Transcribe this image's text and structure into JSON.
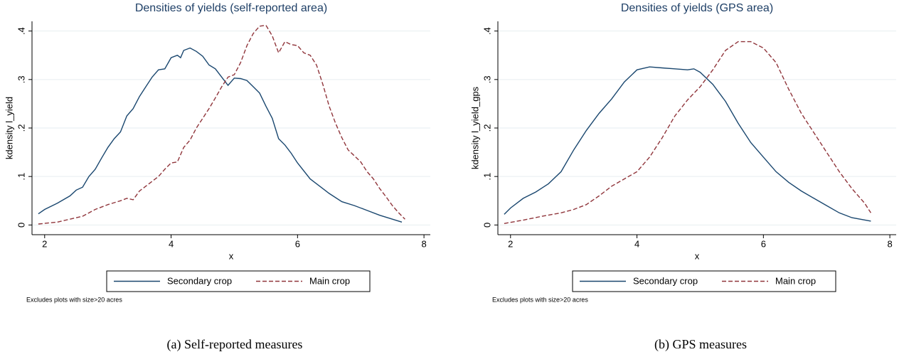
{
  "chart_data": [
    {
      "type": "line",
      "title": "Densities of yields (self-reported area)",
      "x_label": "x",
      "y_label": "kdensity l_yield",
      "note": "Excludes plots with size>20 acres",
      "caption": "(a) Self-reported measures",
      "xlim": [
        1.8,
        8.1
      ],
      "ylim": [
        -0.02,
        0.42
      ],
      "xticks": [
        2,
        4,
        6,
        8
      ],
      "yticks": [
        0,
        {
          "value": 0.1,
          "label": ".1"
        },
        {
          "value": 0.2,
          "label": ".2"
        },
        {
          "value": 0.3,
          "label": ".3"
        },
        {
          "value": 0.4,
          "label": ".4"
        }
      ],
      "grid": true,
      "series": [
        {
          "name": "Secondary crop",
          "color": "#1a476f",
          "dashed": false,
          "x": [
            1.9,
            2.0,
            2.2,
            2.4,
            2.5,
            2.6,
            2.7,
            2.8,
            2.9,
            3.0,
            3.1,
            3.2,
            3.3,
            3.4,
            3.5,
            3.6,
            3.7,
            3.8,
            3.9,
            4.0,
            4.1,
            4.15,
            4.2,
            4.3,
            4.4,
            4.5,
            4.6,
            4.7,
            4.8,
            4.9,
            5.0,
            5.1,
            5.2,
            5.3,
            5.4,
            5.5,
            5.6,
            5.7,
            5.8,
            5.9,
            6.0,
            6.2,
            6.4,
            6.5,
            6.7,
            6.9,
            7.1,
            7.3,
            7.5,
            7.65
          ],
          "values": [
            0.023,
            0.032,
            0.045,
            0.06,
            0.072,
            0.078,
            0.1,
            0.115,
            0.138,
            0.16,
            0.178,
            0.192,
            0.225,
            0.24,
            0.265,
            0.285,
            0.305,
            0.32,
            0.322,
            0.345,
            0.35,
            0.345,
            0.36,
            0.365,
            0.358,
            0.348,
            0.33,
            0.322,
            0.305,
            0.288,
            0.303,
            0.302,
            0.298,
            0.285,
            0.272,
            0.245,
            0.22,
            0.178,
            0.165,
            0.148,
            0.128,
            0.095,
            0.075,
            0.065,
            0.048,
            0.04,
            0.03,
            0.02,
            0.012,
            0.006
          ]
        },
        {
          "name": "Main crop",
          "color": "#90353b",
          "dashed": true,
          "x": [
            1.9,
            2.2,
            2.4,
            2.6,
            2.8,
            3.0,
            3.2,
            3.3,
            3.4,
            3.5,
            3.6,
            3.7,
            3.8,
            3.9,
            4.0,
            4.1,
            4.2,
            4.3,
            4.4,
            4.5,
            4.6,
            4.7,
            4.8,
            4.9,
            5.0,
            5.1,
            5.2,
            5.3,
            5.4,
            5.5,
            5.6,
            5.7,
            5.8,
            5.9,
            6.0,
            6.1,
            6.2,
            6.3,
            6.4,
            6.5,
            6.6,
            6.7,
            6.8,
            7.0,
            7.1,
            7.2,
            7.3,
            7.4,
            7.5,
            7.6,
            7.7
          ],
          "values": [
            0.002,
            0.006,
            0.012,
            0.018,
            0.032,
            0.042,
            0.05,
            0.055,
            0.052,
            0.07,
            0.08,
            0.09,
            0.1,
            0.115,
            0.128,
            0.13,
            0.16,
            0.175,
            0.2,
            0.22,
            0.24,
            0.262,
            0.285,
            0.305,
            0.31,
            0.335,
            0.37,
            0.395,
            0.41,
            0.412,
            0.39,
            0.355,
            0.378,
            0.372,
            0.37,
            0.355,
            0.35,
            0.33,
            0.29,
            0.245,
            0.21,
            0.18,
            0.155,
            0.13,
            0.11,
            0.095,
            0.075,
            0.058,
            0.04,
            0.025,
            0.012
          ]
        }
      ]
    },
    {
      "type": "line",
      "title": "Densities of yields (GPS area)",
      "x_label": "x",
      "y_label": "kdensity l_yield_gps",
      "note": "Excludes plots with size>20 acres",
      "caption": "(b) GPS measures",
      "xlim": [
        1.8,
        8.1
      ],
      "ylim": [
        -0.02,
        0.42
      ],
      "xticks": [
        2,
        4,
        6,
        8
      ],
      "yticks": [
        0,
        {
          "value": 0.1,
          "label": ".1"
        },
        {
          "value": 0.2,
          "label": ".2"
        },
        {
          "value": 0.3,
          "label": ".3"
        },
        {
          "value": 0.4,
          "label": ".4"
        }
      ],
      "grid": true,
      "series": [
        {
          "name": "Secondary crop",
          "color": "#1a476f",
          "dashed": false,
          "x": [
            1.9,
            2.0,
            2.2,
            2.4,
            2.6,
            2.8,
            3.0,
            3.2,
            3.4,
            3.6,
            3.8,
            4.0,
            4.2,
            4.4,
            4.6,
            4.8,
            4.9,
            5.0,
            5.2,
            5.4,
            5.6,
            5.8,
            6.0,
            6.2,
            6.4,
            6.6,
            6.8,
            7.0,
            7.2,
            7.4,
            7.7
          ],
          "values": [
            0.022,
            0.035,
            0.055,
            0.068,
            0.085,
            0.11,
            0.155,
            0.195,
            0.23,
            0.26,
            0.295,
            0.32,
            0.326,
            0.324,
            0.322,
            0.32,
            0.322,
            0.315,
            0.29,
            0.255,
            0.21,
            0.17,
            0.14,
            0.11,
            0.088,
            0.07,
            0.055,
            0.04,
            0.025,
            0.015,
            0.008
          ]
        },
        {
          "name": "Main crop",
          "color": "#90353b",
          "dashed": true,
          "x": [
            1.9,
            2.2,
            2.5,
            2.8,
            3.0,
            3.2,
            3.4,
            3.6,
            3.8,
            4.0,
            4.2,
            4.4,
            4.6,
            4.8,
            5.0,
            5.2,
            5.4,
            5.6,
            5.8,
            6.0,
            6.2,
            6.4,
            6.6,
            6.8,
            7.0,
            7.2,
            7.4,
            7.6,
            7.7
          ],
          "values": [
            0.003,
            0.01,
            0.018,
            0.025,
            0.032,
            0.042,
            0.06,
            0.08,
            0.095,
            0.11,
            0.14,
            0.18,
            0.225,
            0.258,
            0.285,
            0.32,
            0.36,
            0.378,
            0.378,
            0.365,
            0.335,
            0.28,
            0.23,
            0.19,
            0.15,
            0.11,
            0.075,
            0.045,
            0.025
          ]
        }
      ]
    }
  ]
}
